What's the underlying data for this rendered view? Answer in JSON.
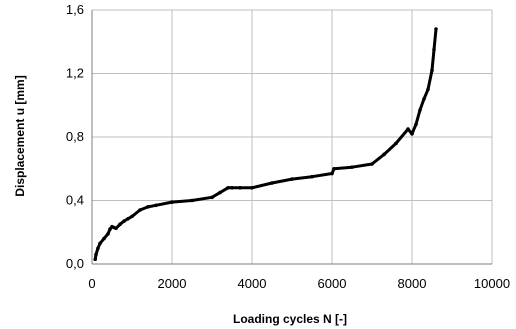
{
  "chart_data": {
    "type": "line",
    "title": "",
    "xlabel": "Loading cycles  N  [-]",
    "ylabel": "Displacement  u  [mm]",
    "xlim": [
      0,
      10000
    ],
    "ylim": [
      0,
      1.6
    ],
    "grid": true,
    "legend": "none",
    "x_ticks": [
      "0",
      "2000",
      "4000",
      "6000",
      "8000",
      "10000"
    ],
    "y_ticks": [
      "0,0",
      "0,4",
      "0,8",
      "1,2",
      "1,6"
    ],
    "series": [
      {
        "color": "#000000",
        "x": [
          80,
          100,
          150,
          200,
          300,
          400,
          450,
          500,
          550,
          600,
          700,
          800,
          900,
          1000,
          1200,
          1400,
          1600,
          2000,
          2500,
          3000,
          3200,
          3400,
          3500,
          3700,
          4000,
          4500,
          5000,
          5500,
          6000,
          6050,
          6500,
          7000,
          7300,
          7600,
          7900,
          8000,
          8100,
          8200,
          8300,
          8400,
          8500,
          8550,
          8600
        ],
        "y": [
          0.03,
          0.06,
          0.1,
          0.13,
          0.16,
          0.19,
          0.22,
          0.235,
          0.23,
          0.225,
          0.25,
          0.27,
          0.285,
          0.3,
          0.34,
          0.36,
          0.37,
          0.39,
          0.4,
          0.42,
          0.45,
          0.48,
          0.48,
          0.48,
          0.48,
          0.51,
          0.535,
          0.55,
          0.57,
          0.6,
          0.61,
          0.63,
          0.69,
          0.76,
          0.85,
          0.82,
          0.88,
          0.97,
          1.04,
          1.1,
          1.22,
          1.35,
          1.48
        ]
      }
    ]
  }
}
